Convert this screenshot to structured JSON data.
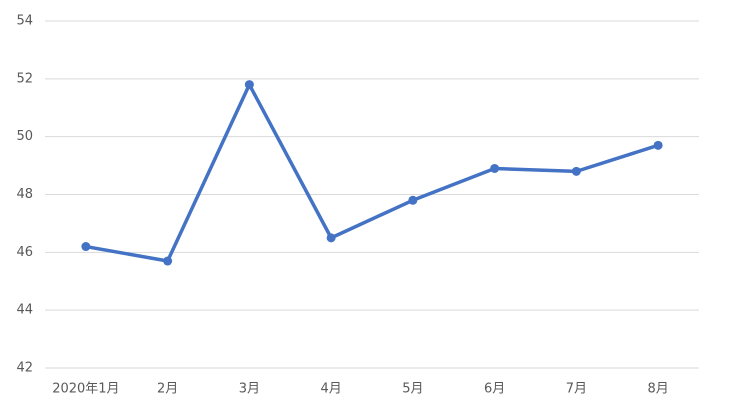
{
  "chart_data": {
    "type": "line",
    "categories": [
      "2020年1月",
      "2月",
      "3月",
      "4月",
      "5月",
      "6月",
      "7月",
      "8月"
    ],
    "series": [
      {
        "name": null,
        "color": "#4472c4",
        "values": [
          46.2,
          45.7,
          51.8,
          46.5,
          47.8,
          48.9,
          48.8,
          49.7
        ]
      }
    ],
    "ylim": [
      42,
      54
    ],
    "yticks": [
      42,
      44,
      46,
      48,
      50,
      52,
      54
    ],
    "grid": true
  }
}
